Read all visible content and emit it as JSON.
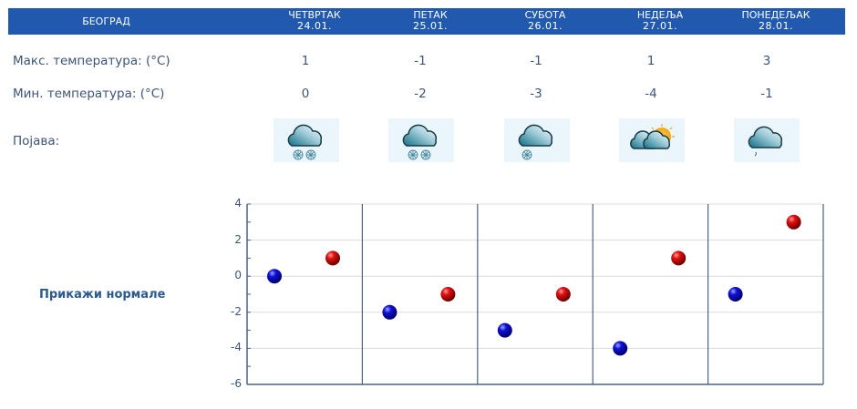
{
  "header": {
    "city": "БЕОГРАД",
    "days": [
      {
        "name": "ЧЕТВРТАК",
        "date": "24.01."
      },
      {
        "name": "ПЕТАК",
        "date": "25.01."
      },
      {
        "name": "СУБОТА",
        "date": "26.01."
      },
      {
        "name": "НЕДЕЉА",
        "date": "27.01."
      },
      {
        "name": "ПОНЕДЕЉАК",
        "date": "28.01."
      }
    ]
  },
  "rows": {
    "max_label": "Макс. температура: (°C)",
    "min_label": "Мин. температура: (°C)",
    "phenomenon_label": "Појава:",
    "max_values": [
      "1",
      "-1",
      "-1",
      "1",
      "3"
    ],
    "min_values": [
      "0",
      "-2",
      "-3",
      "-4",
      "-1"
    ],
    "icons": [
      "cloud-snow-heavy-icon",
      "cloud-snow-heavy-icon",
      "cloud-snow-light-icon",
      "partly-cloudy-sun-icon",
      "cloud-drizzle-icon"
    ]
  },
  "normals_link": "Прикажи нормале",
  "colors": {
    "header_bg": "#2059ae",
    "max_marker": "#cc0000",
    "min_marker": "#0000cc",
    "axis": "#4a6285",
    "grid": "#dcdcdc"
  },
  "chart_data": {
    "type": "scatter",
    "title": "",
    "xlabel": "",
    "ylabel": "",
    "categories": [
      "24.01.",
      "25.01.",
      "26.01.",
      "27.01.",
      "28.01."
    ],
    "series": [
      {
        "name": "Мин. температура",
        "color": "#0000cc",
        "values": [
          0,
          -2,
          -3,
          -4,
          -1
        ]
      },
      {
        "name": "Макс. температура",
        "color": "#cc0000",
        "values": [
          1,
          -1,
          -1,
          1,
          3
        ]
      }
    ],
    "yticks": [
      "4",
      "2",
      "0",
      "-2",
      "-4",
      "-6"
    ],
    "ylim": [
      -6,
      4
    ],
    "grid": true,
    "legend": "none"
  }
}
